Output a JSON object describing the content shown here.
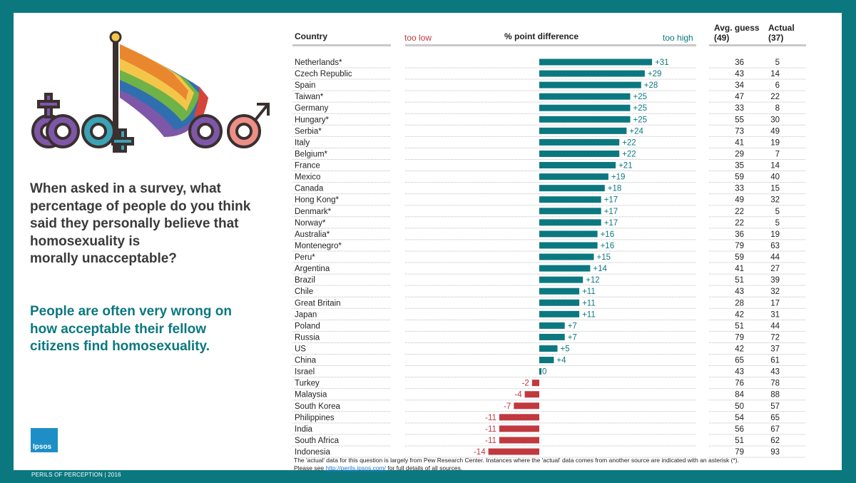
{
  "question": "When asked in a survey, what\npercentage of people do you think\nsaid they personally believe that\nhomosexuality is\nmorally unacceptable?",
  "insight": "People are often very wrong on\nhow acceptable their fellow\ncitizens find homosexuality.",
  "logo_text": "Ipsos",
  "footer": "PERILS OF PERCEPTION | 2016",
  "note_line1": "The 'actual' data for this question is largely from Pew Research Center. Instances where the 'actual' data comes from another source are indicated with an asterisk (*).",
  "note_line2_pre": "Please see ",
  "note_link": "http://perils.ipsos.com/",
  "note_line2_post": " for full details of all sources.",
  "colors": {
    "frame": "#0b7880",
    "positive": "#0b7880",
    "negative": "#c0393f"
  },
  "chart_data": {
    "type": "bar",
    "headers": {
      "country": "Country",
      "too_low": "too low",
      "difference": "% point difference",
      "too_high": "too high",
      "avg_guess": "Avg. guess",
      "avg_guess_n": "(49)",
      "actual": "Actual",
      "actual_n": "(37)"
    },
    "categories": [
      "Netherlands*",
      "Czech Republic",
      "Spain",
      "Taiwan*",
      "Germany",
      "Hungary*",
      "Serbia*",
      "Italy",
      "Belgium*",
      "France",
      "Mexico",
      "Canada",
      "Hong Kong*",
      "Denmark*",
      "Norway*",
      "Australia*",
      "Montenegro*",
      "Peru*",
      "Argentina",
      "Brazil",
      "Chile",
      "Great Britain",
      "Japan",
      "Poland",
      "Russia",
      "US",
      "China",
      "Israel",
      "Turkey",
      "Malaysia",
      "South Korea",
      "Philippines",
      "India",
      "South Africa",
      "Indonesia"
    ],
    "values": [
      31,
      29,
      28,
      25,
      25,
      25,
      24,
      22,
      22,
      21,
      19,
      18,
      17,
      17,
      17,
      16,
      16,
      15,
      14,
      12,
      11,
      11,
      11,
      7,
      7,
      5,
      4,
      0,
      -2,
      -4,
      -7,
      -11,
      -11,
      -11,
      -14
    ],
    "labels": [
      "+31",
      "+29",
      "+28",
      "+25",
      "+25",
      "+25",
      "+24",
      "+22",
      "+22",
      "+21",
      "+19",
      "+18",
      "+17",
      "+17",
      "+17",
      "+16",
      "+16",
      "+15",
      "+14",
      "+12",
      "+11",
      "+11",
      "+11",
      "+7",
      "+7",
      "+5",
      "+4",
      "0",
      "-2",
      "-4",
      "-7",
      "-11",
      "-11",
      "-11",
      "-14"
    ],
    "avg_guess": [
      36,
      43,
      34,
      47,
      33,
      55,
      73,
      41,
      29,
      35,
      59,
      33,
      49,
      22,
      22,
      36,
      79,
      59,
      41,
      51,
      43,
      28,
      42,
      51,
      79,
      42,
      65,
      43,
      76,
      84,
      50,
      54,
      56,
      51,
      79
    ],
    "actual": [
      5,
      14,
      6,
      22,
      8,
      30,
      49,
      19,
      7,
      14,
      40,
      15,
      32,
      5,
      5,
      19,
      63,
      44,
      27,
      39,
      32,
      17,
      31,
      44,
      72,
      37,
      61,
      43,
      78,
      88,
      57,
      65,
      67,
      62,
      93
    ]
  }
}
